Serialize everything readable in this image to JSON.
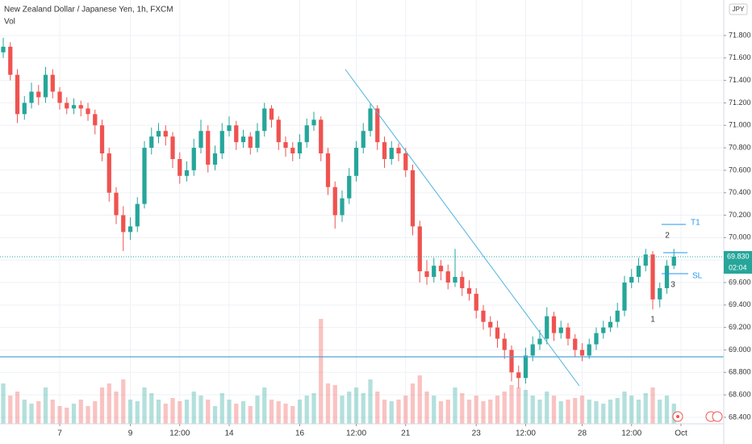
{
  "chart_data": {
    "type": "candlestick",
    "title": "New Zealand Dollar / Japanese Yen, 1h, FXCM",
    "volume_label": "Vol",
    "currency": "JPY",
    "up_color": "#26a69a",
    "down_color": "#ef5350",
    "ohlc": [
      [
        71.65,
        71.78,
        71.6,
        71.7
      ],
      [
        71.7,
        71.74,
        71.4,
        71.45
      ],
      [
        71.45,
        71.5,
        71.02,
        71.1
      ],
      [
        71.1,
        71.26,
        71.05,
        71.2
      ],
      [
        71.2,
        71.38,
        71.15,
        71.3
      ],
      [
        71.3,
        71.36,
        71.18,
        71.25
      ],
      [
        71.25,
        71.52,
        71.2,
        71.45
      ],
      [
        71.45,
        71.5,
        71.24,
        71.3
      ],
      [
        71.3,
        71.34,
        71.14,
        71.2
      ],
      [
        71.2,
        71.25,
        71.1,
        71.15
      ],
      [
        71.15,
        71.24,
        71.1,
        71.18
      ],
      [
        71.18,
        71.22,
        71.08,
        71.15
      ],
      [
        71.15,
        71.2,
        71.04,
        71.1
      ],
      [
        71.1,
        71.14,
        70.92,
        71.0
      ],
      [
        71.0,
        71.05,
        70.68,
        70.75
      ],
      [
        70.75,
        70.8,
        70.32,
        70.4
      ],
      [
        70.4,
        70.45,
        70.12,
        70.2
      ],
      [
        70.2,
        70.28,
        69.88,
        70.05
      ],
      [
        70.05,
        70.18,
        69.98,
        70.1
      ],
      [
        70.1,
        70.36,
        70.05,
        70.3
      ],
      [
        70.3,
        70.86,
        70.26,
        70.8
      ],
      [
        70.8,
        70.98,
        70.74,
        70.9
      ],
      [
        70.9,
        71.02,
        70.84,
        70.95
      ],
      [
        70.95,
        71.0,
        70.82,
        70.9
      ],
      [
        70.9,
        70.94,
        70.62,
        70.7
      ],
      [
        70.7,
        70.76,
        70.48,
        70.55
      ],
      [
        70.55,
        70.68,
        70.5,
        70.6
      ],
      [
        70.6,
        70.88,
        70.55,
        70.8
      ],
      [
        70.8,
        71.05,
        70.75,
        70.95
      ],
      [
        70.95,
        71.0,
        70.58,
        70.65
      ],
      [
        70.65,
        70.82,
        70.6,
        70.75
      ],
      [
        70.75,
        71.02,
        70.7,
        70.95
      ],
      [
        70.95,
        71.08,
        70.9,
        71.0
      ],
      [
        71.0,
        71.04,
        70.78,
        70.85
      ],
      [
        70.85,
        70.96,
        70.8,
        70.9
      ],
      [
        70.9,
        70.94,
        70.74,
        70.8
      ],
      [
        70.8,
        71.02,
        70.76,
        70.95
      ],
      [
        70.95,
        71.2,
        70.9,
        71.15
      ],
      [
        71.15,
        71.18,
        70.98,
        71.05
      ],
      [
        71.05,
        71.08,
        70.78,
        70.85
      ],
      [
        70.85,
        70.9,
        70.72,
        70.8
      ],
      [
        70.8,
        70.85,
        70.68,
        70.75
      ],
      [
        70.75,
        70.92,
        70.7,
        70.85
      ],
      [
        70.85,
        71.06,
        70.8,
        71.0
      ],
      [
        71.0,
        71.12,
        70.95,
        71.05
      ],
      [
        71.05,
        71.08,
        70.68,
        70.75
      ],
      [
        70.75,
        70.8,
        70.38,
        70.45
      ],
      [
        70.45,
        70.5,
        70.08,
        70.2
      ],
      [
        70.2,
        70.42,
        70.14,
        70.35
      ],
      [
        70.35,
        70.62,
        70.3,
        70.55
      ],
      [
        70.55,
        70.86,
        70.5,
        70.8
      ],
      [
        70.8,
        71.02,
        70.75,
        70.95
      ],
      [
        70.95,
        71.2,
        70.9,
        71.15
      ],
      [
        71.15,
        71.18,
        70.78,
        70.85
      ],
      [
        70.85,
        70.9,
        70.62,
        70.7
      ],
      [
        70.7,
        70.86,
        70.65,
        70.8
      ],
      [
        70.8,
        70.84,
        70.68,
        70.75
      ],
      [
        70.75,
        70.8,
        70.54,
        70.6
      ],
      [
        70.6,
        70.65,
        70.02,
        70.1
      ],
      [
        70.1,
        70.15,
        69.6,
        69.7
      ],
      [
        69.7,
        69.8,
        69.58,
        69.65
      ],
      [
        69.65,
        69.82,
        69.6,
        69.75
      ],
      [
        69.75,
        69.8,
        69.62,
        69.7
      ],
      [
        69.7,
        69.76,
        69.54,
        69.6
      ],
      [
        69.6,
        69.9,
        69.56,
        69.65
      ],
      [
        69.65,
        69.7,
        69.48,
        69.55
      ],
      [
        69.55,
        69.62,
        69.44,
        69.5
      ],
      [
        69.5,
        69.55,
        69.28,
        69.35
      ],
      [
        69.35,
        69.4,
        69.18,
        69.25
      ],
      [
        69.25,
        69.3,
        69.12,
        69.2
      ],
      [
        69.2,
        69.26,
        69.02,
        69.1
      ],
      [
        69.1,
        69.15,
        68.92,
        69.0
      ],
      [
        69.0,
        69.04,
        68.72,
        68.8
      ],
      [
        68.8,
        68.86,
        68.66,
        68.75
      ],
      [
        68.75,
        69.02,
        68.7,
        68.95
      ],
      [
        68.95,
        69.12,
        68.9,
        69.05
      ],
      [
        69.05,
        69.18,
        69.0,
        69.1
      ],
      [
        69.1,
        69.38,
        69.05,
        69.3
      ],
      [
        69.3,
        69.34,
        69.08,
        69.15
      ],
      [
        69.15,
        69.26,
        69.1,
        69.2
      ],
      [
        69.2,
        69.24,
        69.04,
        69.1
      ],
      [
        69.1,
        69.14,
        68.94,
        69.0
      ],
      [
        69.0,
        69.06,
        68.9,
        68.95
      ],
      [
        68.95,
        69.1,
        68.92,
        69.05
      ],
      [
        69.05,
        69.2,
        69.0,
        69.15
      ],
      [
        69.15,
        69.26,
        69.1,
        69.2
      ],
      [
        69.2,
        69.3,
        69.16,
        69.25
      ],
      [
        69.25,
        69.42,
        69.2,
        69.35
      ],
      [
        69.35,
        69.66,
        69.3,
        69.6
      ],
      [
        69.6,
        69.72,
        69.55,
        69.65
      ],
      [
        69.65,
        69.82,
        69.6,
        69.75
      ],
      [
        69.75,
        69.9,
        69.7,
        69.85
      ],
      [
        69.85,
        69.88,
        69.36,
        69.45
      ],
      [
        69.45,
        69.6,
        69.38,
        69.55
      ],
      [
        69.55,
        69.8,
        69.5,
        69.75
      ],
      [
        69.75,
        69.9,
        69.72,
        69.83
      ]
    ],
    "volumes": [
      50,
      35,
      40,
      30,
      25,
      28,
      45,
      30,
      22,
      20,
      25,
      30,
      22,
      28,
      45,
      50,
      40,
      55,
      30,
      28,
      45,
      38,
      30,
      25,
      32,
      28,
      30,
      40,
      35,
      30,
      22,
      38,
      30,
      25,
      28,
      22,
      35,
      45,
      30,
      28,
      25,
      22,
      30,
      35,
      38,
      130,
      50,
      48,
      35,
      40,
      45,
      38,
      55,
      40,
      30,
      28,
      30,
      35,
      50,
      60,
      40,
      35,
      28,
      30,
      45,
      38,
      30,
      35,
      28,
      30,
      35,
      40,
      48,
      45,
      42,
      35,
      30,
      40,
      35,
      28,
      30,
      32,
      35,
      30,
      28,
      25,
      30,
      32,
      40,
      35,
      30,
      38,
      45,
      30,
      35,
      25
    ],
    "xlim": [
      -0.46,
      102.06
    ],
    "xticks": [
      {
        "value": 8,
        "label": "7"
      },
      {
        "value": 18,
        "label": "9"
      },
      {
        "value": 25,
        "label": "12:00"
      },
      {
        "value": 32,
        "label": "14"
      },
      {
        "value": 42,
        "label": "16"
      },
      {
        "value": 50,
        "label": "12:00"
      },
      {
        "value": 57,
        "label": "21"
      },
      {
        "value": 67,
        "label": "23"
      },
      {
        "value": 74,
        "label": "12:00"
      },
      {
        "value": 82,
        "label": "28"
      },
      {
        "value": 89,
        "label": "12:00"
      },
      {
        "value": 96,
        "label": "Oct"
      }
    ],
    "ylim": [
      68.378,
      72.116
    ],
    "yticks": [
      {
        "value": 68.4,
        "label": "68.400"
      },
      {
        "value": 68.6,
        "label": "68.600"
      },
      {
        "value": 68.8,
        "label": "68.800"
      },
      {
        "value": 69.0,
        "label": "69.000"
      },
      {
        "value": 69.2,
        "label": "69.200"
      },
      {
        "value": 69.4,
        "label": "69.400"
      },
      {
        "value": 69.6,
        "label": "69.600"
      },
      {
        "value": 69.8,
        "label": "69.800"
      },
      {
        "value": 70.0,
        "label": "70.000"
      },
      {
        "value": 70.2,
        "label": "70.200"
      },
      {
        "value": 70.4,
        "label": "70.400"
      },
      {
        "value": 70.6,
        "label": "70.600"
      },
      {
        "value": 70.8,
        "label": "70.800"
      },
      {
        "value": 71.0,
        "label": "71.000"
      },
      {
        "value": 71.2,
        "label": "71.200"
      },
      {
        "value": 71.4,
        "label": "71.400"
      },
      {
        "value": 71.6,
        "label": "71.600"
      },
      {
        "value": 71.8,
        "label": "71.800"
      }
    ],
    "grid": true,
    "last_price": {
      "value": 69.83,
      "label": "69.830"
    },
    "countdown": "02:04",
    "annotations": {
      "t1": "T1",
      "sl": "SL",
      "p1": "1",
      "p2": "2",
      "p3": "3"
    }
  }
}
